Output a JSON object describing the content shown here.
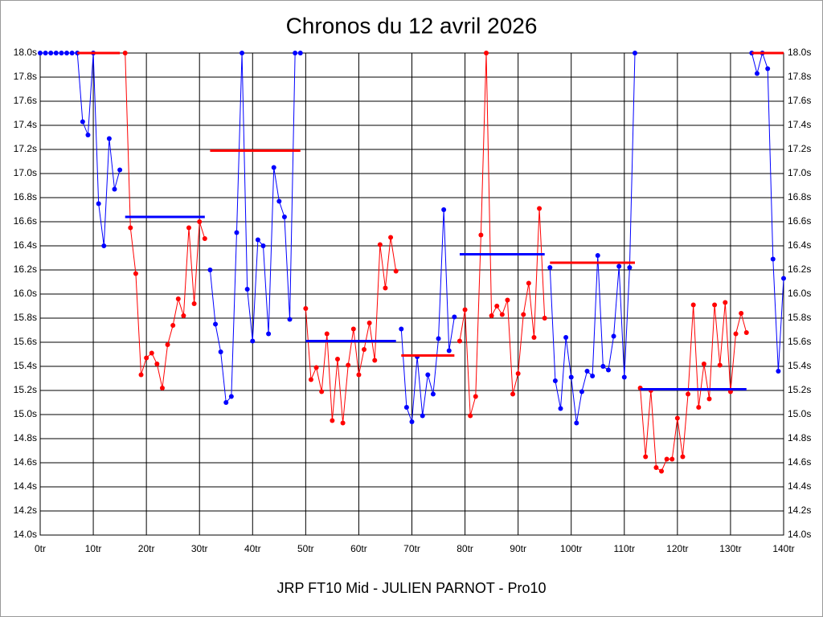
{
  "chart_data": {
    "type": "line",
    "title": "Chronos du 12 avril 2026",
    "xlabel": "JRP FT10 Mid - JULIEN PARNOT - Pro10",
    "xlim": [
      0,
      140
    ],
    "xticks": [
      {
        "value": 0,
        "label": "0tr"
      },
      {
        "value": 10,
        "label": "10tr"
      },
      {
        "value": 20,
        "label": "20tr"
      },
      {
        "value": 30,
        "label": "30tr"
      },
      {
        "value": 40,
        "label": "40tr"
      },
      {
        "value": 50,
        "label": "50tr"
      },
      {
        "value": 60,
        "label": "60tr"
      },
      {
        "value": 70,
        "label": "70tr"
      },
      {
        "value": 80,
        "label": "80tr"
      },
      {
        "value": 90,
        "label": "90tr"
      },
      {
        "value": 100,
        "label": "100tr"
      },
      {
        "value": 110,
        "label": "110tr"
      },
      {
        "value": 120,
        "label": "120tr"
      },
      {
        "value": 130,
        "label": "130tr"
      },
      {
        "value": 140,
        "label": "140tr"
      }
    ],
    "ylim": [
      14.0,
      18.0
    ],
    "yticks": [
      {
        "value": 14.0,
        "label": "14.0s"
      },
      {
        "value": 14.2,
        "label": "14.2s"
      },
      {
        "value": 14.4,
        "label": "14.4s"
      },
      {
        "value": 14.6,
        "label": "14.6s"
      },
      {
        "value": 14.8,
        "label": "14.8s"
      },
      {
        "value": 15.0,
        "label": "15.0s"
      },
      {
        "value": 15.2,
        "label": "15.2s"
      },
      {
        "value": 15.4,
        "label": "15.4s"
      },
      {
        "value": 15.6,
        "label": "15.6s"
      },
      {
        "value": 15.8,
        "label": "15.8s"
      },
      {
        "value": 16.0,
        "label": "16.0s"
      },
      {
        "value": 16.2,
        "label": "16.2s"
      },
      {
        "value": 16.4,
        "label": "16.4s"
      },
      {
        "value": 16.6,
        "label": "16.6s"
      },
      {
        "value": 16.8,
        "label": "16.8s"
      },
      {
        "value": 17.0,
        "label": "17.0s"
      },
      {
        "value": 17.2,
        "label": "17.2s"
      },
      {
        "value": 17.4,
        "label": "17.4s"
      },
      {
        "value": 17.6,
        "label": "17.6s"
      },
      {
        "value": 17.8,
        "label": "17.8s"
      },
      {
        "value": 18.0,
        "label": "18.0s"
      }
    ],
    "grid": true,
    "series": [
      {
        "color": "#0000ff",
        "x": [
          0,
          1,
          2,
          3,
          4,
          5,
          6,
          7,
          8,
          9,
          10,
          11,
          12,
          13,
          14,
          15
        ],
        "values": [
          18.0,
          18.0,
          18.0,
          18.0,
          18.0,
          18.0,
          18.0,
          18.0,
          17.43,
          17.32,
          18.0,
          16.75,
          16.4,
          17.29,
          16.87,
          17.03
        ]
      },
      {
        "color": "#ff0000",
        "x": [
          16,
          17,
          18,
          19,
          20,
          21,
          22,
          23,
          24,
          25,
          26,
          27,
          28,
          29,
          30,
          31
        ],
        "values": [
          18.0,
          16.55,
          16.17,
          15.33,
          15.47,
          15.51,
          15.42,
          15.22,
          15.58,
          15.74,
          15.96,
          15.82,
          16.55,
          15.92,
          16.6,
          16.46
        ]
      },
      {
        "color": "#0000ff",
        "x": [
          32,
          33,
          34,
          35,
          36,
          37,
          38,
          39,
          40,
          41,
          42,
          43,
          44,
          45,
          46,
          47,
          48,
          49
        ],
        "values": [
          16.2,
          15.75,
          15.52,
          15.1,
          15.15,
          16.51,
          18.0,
          16.04,
          15.61,
          16.45,
          16.4,
          15.67,
          17.05,
          16.77,
          16.64,
          15.79,
          18.0,
          18.0
        ]
      },
      {
        "color": "#ff0000",
        "x": [
          50,
          51,
          52,
          53,
          54,
          55,
          56,
          57,
          58,
          59,
          60,
          61,
          62,
          63,
          64,
          65,
          66,
          67
        ],
        "values": [
          15.88,
          15.29,
          15.39,
          15.19,
          15.67,
          14.95,
          15.46,
          14.93,
          15.41,
          15.71,
          15.33,
          15.54,
          15.76,
          15.45,
          16.41,
          16.05,
          16.47,
          16.19
        ]
      },
      {
        "color": "#0000ff",
        "x": [
          68,
          69,
          70,
          71,
          72,
          73,
          74,
          75,
          76,
          77,
          78
        ],
        "values": [
          15.71,
          15.06,
          14.94,
          15.48,
          14.99,
          15.33,
          15.17,
          15.63,
          16.7,
          15.53,
          15.81
        ]
      },
      {
        "color": "#ff0000",
        "x": [
          79,
          80,
          81,
          82,
          83,
          84,
          85,
          86,
          87,
          88,
          89,
          90,
          91,
          92,
          93,
          94,
          95
        ],
        "values": [
          15.61,
          15.87,
          14.99,
          15.15,
          16.49,
          18.0,
          15.82,
          15.9,
          15.83,
          15.95,
          15.17,
          15.34,
          15.83,
          16.09,
          15.64,
          16.71,
          15.8
        ]
      },
      {
        "color": "#0000ff",
        "x": [
          96,
          97,
          98,
          99,
          100,
          101,
          102,
          103,
          104,
          105,
          106,
          107,
          108,
          109,
          110,
          111,
          112
        ],
        "values": [
          16.22,
          15.28,
          15.05,
          15.64,
          15.31,
          14.93,
          15.19,
          15.36,
          15.32,
          16.32,
          15.4,
          15.37,
          15.65,
          16.23,
          15.31,
          16.22,
          18.0
        ]
      },
      {
        "color": "#ff0000",
        "x": [
          113,
          114,
          115,
          116,
          117,
          118,
          119,
          120,
          121,
          122,
          123,
          124,
          125,
          126,
          127,
          128,
          129,
          130,
          131,
          132,
          133
        ],
        "values": [
          15.22,
          14.65,
          15.2,
          14.56,
          14.53,
          14.63,
          14.63,
          14.97,
          14.65,
          15.17,
          15.91,
          15.06,
          15.42,
          15.13,
          15.91,
          15.41,
          15.93,
          15.19,
          15.67,
          15.84,
          15.68
        ]
      },
      {
        "color": "#0000ff",
        "x": [
          134,
          135,
          136,
          137,
          138,
          139,
          140
        ],
        "values": [
          18.0,
          17.83,
          18.0,
          17.87,
          16.29,
          15.36,
          16.13
        ]
      }
    ],
    "reference_lines": [
      {
        "color": "#ff0000",
        "x": [
          7,
          15
        ],
        "value": 18.0
      },
      {
        "color": "#0000ff",
        "x": [
          16,
          31
        ],
        "value": 16.64
      },
      {
        "color": "#ff0000",
        "x": [
          32,
          49
        ],
        "value": 17.19
      },
      {
        "color": "#0000ff",
        "x": [
          50,
          67
        ],
        "value": 15.61
      },
      {
        "color": "#ff0000",
        "x": [
          68,
          78
        ],
        "value": 15.49
      },
      {
        "color": "#0000ff",
        "x": [
          79,
          95
        ],
        "value": 16.33
      },
      {
        "color": "#ff0000",
        "x": [
          96,
          112
        ],
        "value": 16.26
      },
      {
        "color": "#0000ff",
        "x": [
          113,
          133
        ],
        "value": 15.21
      },
      {
        "color": "#ff0000",
        "x": [
          134,
          140
        ],
        "value": 18.0
      }
    ]
  }
}
